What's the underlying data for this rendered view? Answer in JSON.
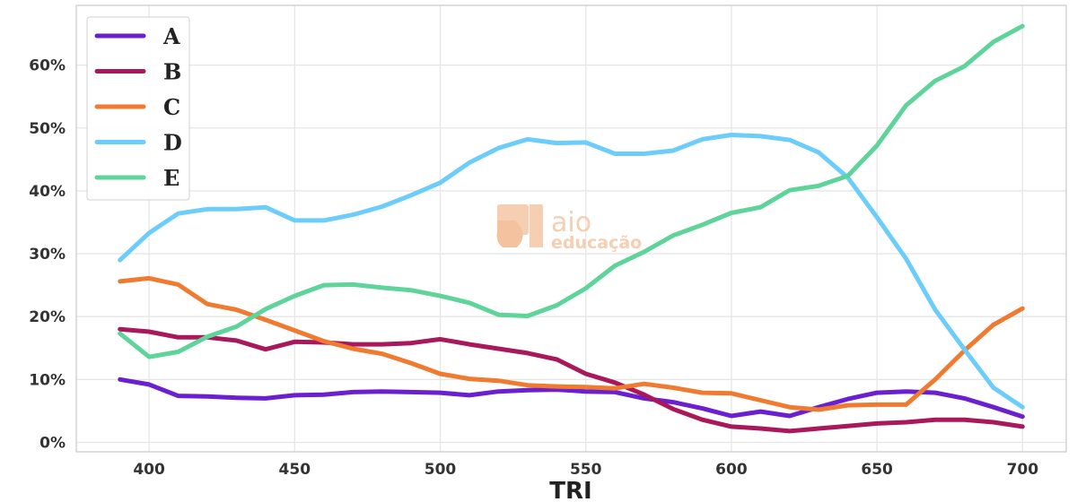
{
  "chart_data": {
    "type": "line",
    "title": "",
    "xlabel": "TRI",
    "ylabel": "",
    "x": [
      390,
      400,
      410,
      420,
      430,
      440,
      450,
      460,
      470,
      480,
      490,
      500,
      510,
      520,
      530,
      540,
      550,
      560,
      570,
      580,
      590,
      600,
      610,
      620,
      630,
      640,
      650,
      660,
      670,
      680,
      690,
      700
    ],
    "xlim": [
      375,
      715
    ],
    "ylim": [
      -1.5,
      69.5
    ],
    "xticks": [
      400,
      450,
      500,
      550,
      600,
      650,
      700
    ],
    "xtick_labels": [
      "400",
      "450",
      "500",
      "550",
      "600",
      "650",
      "700"
    ],
    "yticks": [
      0,
      10,
      20,
      30,
      40,
      50,
      60
    ],
    "ytick_labels": [
      "0%",
      "10%",
      "20%",
      "30%",
      "40%",
      "50%",
      "60%"
    ],
    "grid": true,
    "legend_position": "top-left",
    "series": [
      {
        "name": "A",
        "color": "#6a1fd0",
        "values": [
          10.0,
          9.2,
          7.4,
          7.3,
          7.1,
          7.0,
          7.5,
          7.6,
          8.0,
          8.1,
          8.0,
          7.9,
          7.5,
          8.1,
          8.3,
          8.4,
          8.1,
          8.0,
          7.0,
          6.4,
          5.4,
          4.2,
          4.9,
          4.2,
          5.6,
          6.9,
          7.9,
          8.1,
          7.9,
          7.0,
          5.6,
          4.1
        ]
      },
      {
        "name": "B",
        "color": "#a8185a",
        "values": [
          18.0,
          17.6,
          16.7,
          16.7,
          16.2,
          14.8,
          16.0,
          15.9,
          15.6,
          15.6,
          15.8,
          16.4,
          15.6,
          14.9,
          14.2,
          13.2,
          10.9,
          9.5,
          7.6,
          5.3,
          3.6,
          2.5,
          2.2,
          1.8,
          2.2,
          2.6,
          3.0,
          3.2,
          3.6,
          3.6,
          3.2,
          2.5
        ]
      },
      {
        "name": "C",
        "color": "#f07b30",
        "values": [
          25.6,
          26.1,
          25.1,
          22.0,
          21.1,
          19.5,
          17.8,
          16.1,
          14.9,
          14.1,
          12.6,
          10.9,
          10.1,
          9.8,
          9.1,
          8.9,
          8.8,
          8.6,
          9.3,
          8.7,
          7.9,
          7.8,
          6.7,
          5.6,
          5.2,
          5.9,
          6.0,
          6.0,
          10.0,
          14.6,
          18.7,
          21.3
        ]
      },
      {
        "name": "D",
        "color": "#6ccdfb",
        "values": [
          29.0,
          33.3,
          36.4,
          37.1,
          37.1,
          37.4,
          35.3,
          35.3,
          36.2,
          37.5,
          39.3,
          41.3,
          44.5,
          46.8,
          48.2,
          47.6,
          47.7,
          45.9,
          45.9,
          46.4,
          48.2,
          48.9,
          48.7,
          48.1,
          46.1,
          42.1,
          35.8,
          29.2,
          21.1,
          14.8,
          8.7,
          5.6
        ]
      },
      {
        "name": "E",
        "color": "#5fd49a",
        "values": [
          17.3,
          13.6,
          14.4,
          16.8,
          18.4,
          21.2,
          23.3,
          25.0,
          25.1,
          24.6,
          24.2,
          23.3,
          22.2,
          20.3,
          20.1,
          21.8,
          24.5,
          28.1,
          30.3,
          32.9,
          34.6,
          36.5,
          37.4,
          40.1,
          40.8,
          42.4,
          47.2,
          53.6,
          57.5,
          59.8,
          63.7,
          66.2
        ]
      }
    ]
  },
  "watermark": {
    "text_line1": "aio",
    "text_line2": "educação",
    "color": "#f5c6a4"
  }
}
